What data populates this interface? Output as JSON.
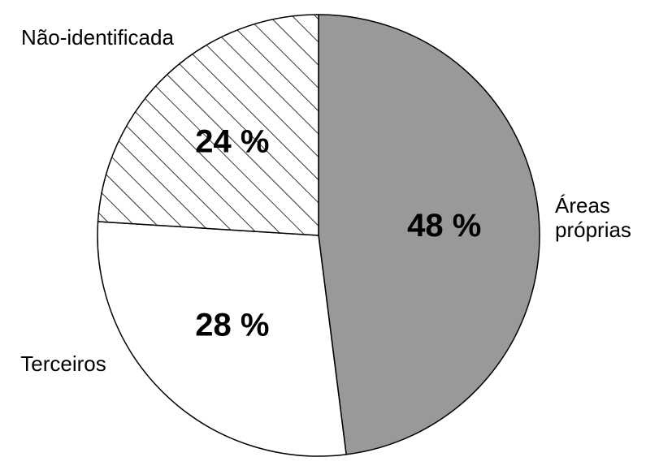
{
  "chart_data": {
    "type": "pie",
    "categories": [
      "Áreas próprias",
      "Terceiros",
      "Não-identificada"
    ],
    "values": [
      48,
      28,
      24
    ],
    "value_labels": [
      "48 %",
      "28 %",
      "24 %"
    ],
    "colors": [
      "#999999",
      "#ffffff",
      "#ffffff"
    ],
    "hatch": [
      false,
      false,
      true
    ]
  }
}
